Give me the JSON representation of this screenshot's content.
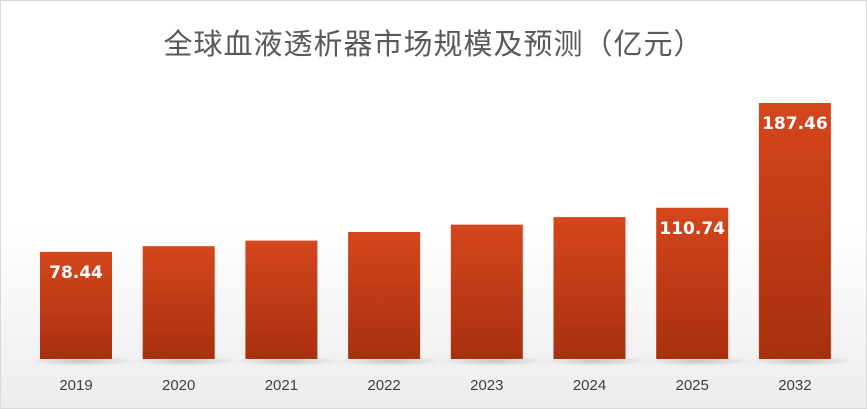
{
  "chart_data": {
    "type": "bar",
    "title": "全球血液透析器市场规模及预测（亿元）",
    "categories": [
      "2019",
      "2020",
      "2021",
      "2022",
      "2023",
      "2024",
      "2025",
      "2032"
    ],
    "values": [
      78.44,
      82.6,
      86.7,
      93.0,
      98.4,
      103.9,
      110.74,
      187.46
    ],
    "data_labels": [
      "78.44",
      null,
      null,
      null,
      null,
      null,
      "110.74",
      "187.46"
    ],
    "ylim": [
      0,
      187.46
    ],
    "grid": false,
    "legend": "none",
    "colors": {
      "bar_top": "#d5461c",
      "bar_bottom": "#a8300f",
      "label": "#ffffff",
      "tick": "#404040",
      "title": "#595959"
    }
  }
}
